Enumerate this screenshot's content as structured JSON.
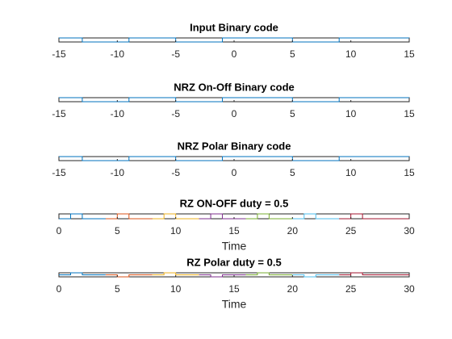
{
  "chart_data": [
    {
      "type": "line",
      "title": "Input Binary code",
      "xlim": [
        -15,
        15
      ],
      "xticks": [
        -15,
        -10,
        -5,
        0,
        5,
        10,
        15
      ],
      "ylim": [
        0,
        1
      ],
      "series": [
        {
          "color": "#0072bd",
          "x": [
            -15,
            -13,
            -13,
            -9,
            -9,
            -5,
            -5,
            -1,
            -1,
            5,
            5,
            9,
            9,
            15
          ],
          "values": [
            1,
            1,
            0,
            0,
            1,
            1,
            0,
            0,
            1,
            1,
            0,
            0,
            1,
            1
          ]
        }
      ]
    },
    {
      "type": "line",
      "title": "NRZ On-Off Binary code",
      "xlim": [
        -15,
        15
      ],
      "xticks": [
        -15,
        -10,
        -5,
        0,
        5,
        10,
        15
      ],
      "ylim": [
        0,
        1
      ],
      "series": [
        {
          "color": "#0072bd",
          "x": [
            -15,
            -13,
            -13,
            -9,
            -9,
            -5,
            -5,
            -1,
            -1,
            5,
            5,
            9,
            9,
            15
          ],
          "values": [
            1,
            1,
            0,
            0,
            1,
            1,
            0,
            0,
            1,
            1,
            0,
            0,
            1,
            1
          ]
        }
      ]
    },
    {
      "type": "line",
      "title": "NRZ Polar Binary code",
      "xlim": [
        -15,
        15
      ],
      "xticks": [
        -15,
        -10,
        -5,
        0,
        5,
        10,
        15
      ],
      "ylim": [
        -1,
        1
      ],
      "series": [
        {
          "color": "#0072bd",
          "x": [
            -15,
            -13,
            -13,
            -9,
            -9,
            -5,
            -5,
            -1,
            -1,
            5,
            5,
            9,
            9,
            15
          ],
          "values": [
            1,
            1,
            -1,
            -1,
            1,
            1,
            -1,
            -1,
            1,
            1,
            -1,
            -1,
            1,
            1
          ]
        }
      ]
    },
    {
      "type": "line",
      "title": "RZ ON-OFF duty = 0.5",
      "x_label": "Time",
      "xlim": [
        0,
        30
      ],
      "xticks": [
        0,
        5,
        10,
        15,
        20,
        25,
        30
      ],
      "ylim": [
        0,
        1
      ],
      "series": [
        {
          "color": "#0072bd",
          "x": [
            0,
            1,
            1,
            2,
            2,
            4
          ],
          "values": [
            0,
            0,
            1,
            1,
            0,
            0
          ]
        },
        {
          "color": "#d95319",
          "x": [
            4,
            5,
            5,
            6,
            6,
            8
          ],
          "values": [
            0,
            0,
            1,
            1,
            0,
            0
          ]
        },
        {
          "color": "#edb120",
          "x": [
            8,
            9,
            9,
            10,
            10,
            12
          ],
          "values": [
            0,
            0,
            1,
            1,
            0,
            0
          ]
        },
        {
          "color": "#7e2f8e",
          "x": [
            12,
            13,
            13,
            14,
            14,
            16
          ],
          "values": [
            0,
            0,
            1,
            1,
            0,
            0
          ]
        },
        {
          "color": "#77ac30",
          "x": [
            16,
            17,
            17,
            18,
            18,
            20
          ],
          "values": [
            0,
            0,
            1,
            1,
            0,
            0
          ]
        },
        {
          "color": "#4dbeee",
          "x": [
            20,
            21,
            21,
            22,
            22,
            24
          ],
          "values": [
            0,
            0,
            1,
            1,
            0,
            0
          ]
        },
        {
          "color": "#a2142f",
          "x": [
            24,
            25,
            25,
            26,
            26,
            30
          ],
          "values": [
            0,
            0,
            1,
            1,
            0,
            0
          ]
        }
      ]
    },
    {
      "type": "line",
      "title": "RZ Polar duty = 0.5",
      "x_label": "Time",
      "xlim": [
        0,
        30
      ],
      "xticks": [
        0,
        5,
        10,
        15,
        20,
        25,
        30
      ],
      "ylim": [
        -1,
        1
      ],
      "series": [
        {
          "color": "#0072bd",
          "x": [
            0,
            1,
            1,
            2,
            2,
            4
          ],
          "values": [
            0,
            0,
            1,
            1,
            0,
            0
          ]
        },
        {
          "color": "#d95319",
          "x": [
            4,
            5,
            5,
            6,
            6,
            8
          ],
          "values": [
            0,
            0,
            -1,
            -1,
            0,
            0
          ]
        },
        {
          "color": "#edb120",
          "x": [
            8,
            9,
            9,
            10,
            10,
            12
          ],
          "values": [
            0,
            0,
            1,
            1,
            0,
            0
          ]
        },
        {
          "color": "#7e2f8e",
          "x": [
            12,
            13,
            13,
            14,
            14,
            16
          ],
          "values": [
            0,
            0,
            -1,
            -1,
            0,
            0
          ]
        },
        {
          "color": "#77ac30",
          "x": [
            16,
            17,
            17,
            18,
            18,
            20
          ],
          "values": [
            0,
            0,
            1,
            1,
            0,
            0
          ]
        },
        {
          "color": "#4dbeee",
          "x": [
            20,
            21,
            21,
            22,
            22,
            24
          ],
          "values": [
            0,
            0,
            -1,
            -1,
            0,
            0
          ]
        },
        {
          "color": "#a2142f",
          "x": [
            24,
            25,
            25,
            26,
            26,
            30
          ],
          "values": [
            0,
            0,
            1,
            1,
            0,
            0
          ]
        }
      ]
    }
  ]
}
